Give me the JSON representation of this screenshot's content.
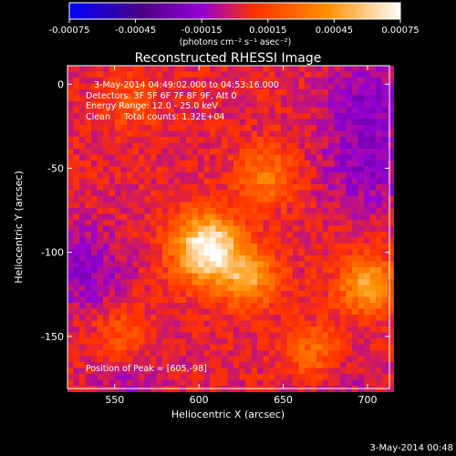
{
  "chart_data": {
    "type": "heatmap",
    "title": "Reconstructed RHESSI Image",
    "xlabel": "Heliocentric X (arcsec)",
    "ylabel": "Heliocentric Y (arcsec)",
    "xlim": [
      522,
      713
    ],
    "ylim": [
      -181,
      11
    ],
    "x_ticks": [
      550,
      600,
      650,
      700
    ],
    "y_ticks": [
      0,
      -50,
      -100,
      -150
    ],
    "colorbar": {
      "range": [
        -0.00075,
        0.00075
      ],
      "ticks": [
        "-0.00075",
        "-0.00045",
        "-0.00015",
        "0.00015",
        "0.00045",
        "0.00075"
      ],
      "units": "(photons cm⁻² s⁻¹ asec⁻²)",
      "colors": [
        "#0000ff",
        "#4b0082",
        "#9400d3",
        "#ff3000",
        "#ff9000",
        "#ffffff"
      ]
    },
    "annotations": [
      "3-May-2014 04:49:02.000 to 04:53:16.000",
      "Detectors: 3F 5F 6F 7F 8F 9F, Att 0",
      "Energy Range: 12.0 - 25.0 keV",
      "Clean     Total counts: 1.32E+04"
    ],
    "peak_label": "Position of Peak = [605,-98]",
    "peak": {
      "x": 605,
      "y": -98,
      "value": 0.00075
    },
    "sources": [
      {
        "x": 605,
        "y": -98,
        "value": 0.00075
      },
      {
        "x": 630,
        "y": -115,
        "value": 0.0004
      },
      {
        "x": 700,
        "y": -120,
        "value": 0.00045
      },
      {
        "x": 668,
        "y": -160,
        "value": 0.0003
      },
      {
        "x": 555,
        "y": -150,
        "value": 0.0002
      },
      {
        "x": 560,
        "y": -10,
        "value": 0.00015
      },
      {
        "x": 640,
        "y": -55,
        "value": 0.0003
      }
    ],
    "negative_regions": [
      {
        "x": 530,
        "y": -110,
        "value": -0.0002
      },
      {
        "x": 700,
        "y": -50,
        "value": -0.0002
      },
      {
        "x": 700,
        "y": -10,
        "value": -0.0002
      },
      {
        "x": 560,
        "y": -175,
        "value": -0.0001
      },
      {
        "x": 680,
        "y": -175,
        "value": -0.0001
      }
    ]
  },
  "footer_date": "3-May-2014 00:48"
}
